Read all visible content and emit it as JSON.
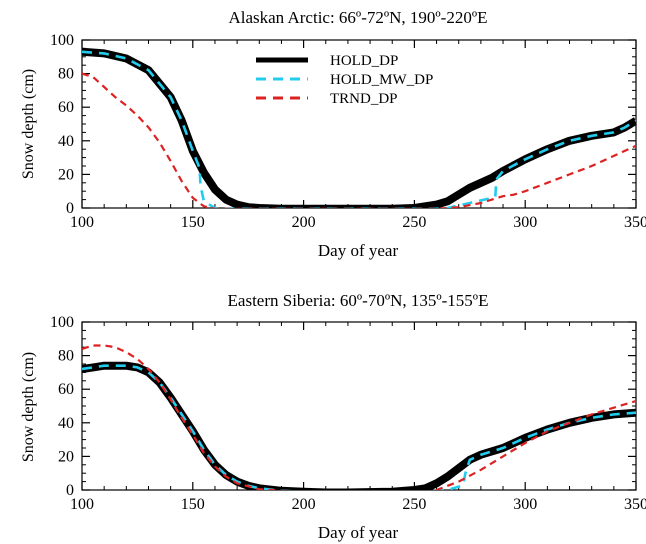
{
  "chart_data": [
    {
      "type": "line",
      "title": "Alaskan Arctic: 66º-72ºN, 190º-220ºE",
      "xlabel": "Day of year",
      "ylabel": "Snow depth (cm)",
      "xlim": [
        100,
        350
      ],
      "ylim": [
        0,
        100
      ],
      "xticks": [
        "100",
        "150",
        "200",
        "250",
        "300",
        "350"
      ],
      "yticks": [
        "0",
        "20",
        "40",
        "60",
        "80",
        "100"
      ],
      "legend": "top-center",
      "series": [
        {
          "name": "HOLD_DP",
          "color": "#000000",
          "style": "solid-thick",
          "x": [
            100,
            110,
            120,
            130,
            140,
            145,
            150,
            155,
            160,
            165,
            170,
            175,
            180,
            190,
            200,
            220,
            240,
            250,
            260,
            265,
            270,
            275,
            280,
            285,
            290,
            300,
            310,
            320,
            330,
            340,
            345,
            350
          ],
          "y": [
            93,
            92,
            89,
            82,
            66,
            52,
            34,
            21,
            11,
            5,
            2,
            0.5,
            0,
            -0.5,
            -0.5,
            -0.5,
            -0.5,
            0,
            2,
            4,
            8,
            12,
            15,
            18,
            22,
            29,
            35,
            40,
            43,
            45,
            48,
            52
          ]
        },
        {
          "name": "HOLD_MW_DP",
          "color": "#22ccee",
          "style": "dashed",
          "x": [
            100,
            110,
            120,
            130,
            140,
            145,
            150,
            153,
            153.5,
            155,
            160,
            165,
            170,
            180,
            190,
            200,
            220,
            240,
            250,
            260,
            265,
            270,
            275,
            280,
            285,
            286.5,
            287,
            290,
            300,
            310,
            320,
            330,
            340,
            345,
            350
          ],
          "y": [
            93,
            92,
            89,
            82,
            66,
            52,
            34,
            24,
            13,
            4,
            0,
            -0.5,
            -0.5,
            -0.5,
            -0.5,
            -0.5,
            -0.5,
            -0.5,
            -0.5,
            -0.5,
            0,
            1.5,
            3,
            4.5,
            6,
            7,
            17,
            22,
            29,
            35,
            40,
            43,
            45,
            48,
            52
          ]
        },
        {
          "name": "TRND_DP",
          "color": "#dd2222",
          "style": "dashed",
          "x": [
            100,
            105,
            110,
            115,
            120,
            125,
            130,
            135,
            140,
            145,
            150,
            155,
            160,
            165,
            170,
            200,
            220,
            250,
            260,
            270,
            280,
            285,
            290,
            295,
            300,
            310,
            320,
            330,
            340,
            350
          ],
          "y": [
            80,
            78,
            72,
            66,
            61,
            55,
            48,
            39,
            28,
            16,
            6,
            1,
            -0.5,
            -0.5,
            -0.5,
            -0.5,
            -0.5,
            -0.5,
            -0.5,
            0.5,
            3,
            5,
            7,
            8,
            10,
            15,
            20,
            25,
            31,
            37
          ]
        }
      ]
    },
    {
      "type": "line",
      "title": "Eastern Siberia: 60º-70ºN, 135º-155ºE",
      "xlabel": "Day of year",
      "ylabel": "Snow depth (cm)",
      "xlim": [
        100,
        350
      ],
      "ylim": [
        0,
        100
      ],
      "xticks": [
        "100",
        "150",
        "200",
        "250",
        "300",
        "350"
      ],
      "yticks": [
        "0",
        "20",
        "40",
        "60",
        "80",
        "100"
      ],
      "series": [
        {
          "name": "HOLD_DP",
          "color": "#000000",
          "style": "solid-thick",
          "x": [
            100,
            105,
            110,
            115,
            120,
            125,
            130,
            135,
            140,
            145,
            150,
            155,
            160,
            165,
            170,
            175,
            180,
            190,
            200,
            210,
            220,
            240,
            250,
            255,
            260,
            265,
            270,
            275,
            280,
            290,
            300,
            310,
            320,
            330,
            340,
            350
          ],
          "y": [
            72,
            73,
            74,
            74,
            74,
            73,
            70,
            64,
            55,
            45,
            35,
            24,
            15,
            9,
            5,
            2.5,
            1,
            -0.5,
            -1,
            -1.5,
            -1.5,
            -1,
            0,
            1,
            4,
            8,
            13,
            18,
            21,
            25,
            31,
            36,
            40,
            43,
            45,
            46
          ]
        },
        {
          "name": "HOLD_MW_DP",
          "color": "#22ccee",
          "style": "dashed",
          "x": [
            100,
            105,
            110,
            115,
            120,
            125,
            130,
            135,
            140,
            145,
            150,
            155,
            160,
            165,
            170,
            175,
            180,
            190,
            200,
            210,
            220,
            240,
            250,
            255,
            260,
            265,
            270,
            272,
            273,
            275,
            280,
            290,
            300,
            310,
            320,
            330,
            340,
            350
          ],
          "y": [
            72,
            73,
            74,
            74,
            74,
            73,
            70,
            64,
            55,
            45,
            35,
            24,
            15,
            9,
            5,
            2.5,
            1,
            -0.5,
            -1,
            -1.5,
            -1.5,
            -1,
            -1,
            -1,
            -0.5,
            0,
            2,
            3,
            10,
            18,
            21,
            25,
            31,
            36,
            40,
            43,
            45,
            46
          ]
        },
        {
          "name": "TRND_DP",
          "color": "#dd2222",
          "style": "dashed",
          "x": [
            100,
            105,
            110,
            115,
            120,
            125,
            130,
            135,
            140,
            145,
            150,
            155,
            160,
            165,
            170,
            180,
            190,
            200,
            210,
            220,
            240,
            255,
            260,
            270,
            280,
            290,
            300,
            310,
            320,
            330,
            340,
            350
          ],
          "y": [
            84,
            86,
            86,
            85,
            82,
            78,
            72,
            64,
            54,
            43,
            33,
            22,
            14,
            8,
            4,
            0.5,
            -0.5,
            -1,
            -1.5,
            -1.5,
            -1.5,
            -1,
            0,
            5,
            12,
            20,
            28,
            35,
            40,
            45,
            49,
            53
          ]
        }
      ]
    }
  ]
}
